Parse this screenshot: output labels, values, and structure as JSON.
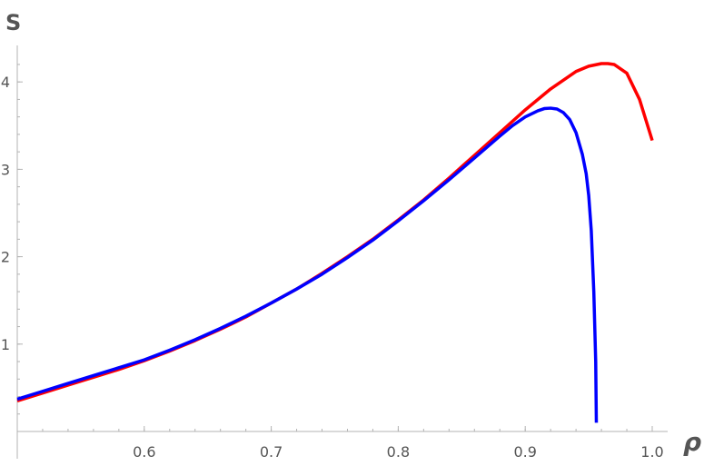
{
  "chart_data": {
    "type": "line",
    "xlabel": "ρ",
    "ylabel": "S",
    "xlim": [
      0.5,
      1.0
    ],
    "ylim": [
      0,
      4.3
    ],
    "xticks": [
      0.6,
      0.7,
      0.8,
      0.9,
      1.0
    ],
    "xtick_labels": [
      "0.6",
      "0.7",
      "0.8",
      "0.9",
      "1.0"
    ],
    "yticks": [
      1,
      2,
      3,
      4
    ],
    "ytick_labels": [
      "1",
      "2",
      "3",
      "4"
    ],
    "grid": false,
    "legend": "none",
    "series": [
      {
        "color": "#ff0000",
        "points": [
          [
            0.5,
            0.35
          ],
          [
            0.52,
            0.44
          ],
          [
            0.54,
            0.53
          ],
          [
            0.56,
            0.62
          ],
          [
            0.58,
            0.71
          ],
          [
            0.6,
            0.81
          ],
          [
            0.62,
            0.92
          ],
          [
            0.64,
            1.04
          ],
          [
            0.66,
            1.17
          ],
          [
            0.68,
            1.31
          ],
          [
            0.7,
            1.47
          ],
          [
            0.72,
            1.63
          ],
          [
            0.74,
            1.81
          ],
          [
            0.76,
            2.0
          ],
          [
            0.78,
            2.2
          ],
          [
            0.8,
            2.42
          ],
          [
            0.82,
            2.65
          ],
          [
            0.84,
            2.9
          ],
          [
            0.86,
            3.16
          ],
          [
            0.88,
            3.42
          ],
          [
            0.9,
            3.68
          ],
          [
            0.92,
            3.92
          ],
          [
            0.94,
            4.12
          ],
          [
            0.95,
            4.18
          ],
          [
            0.96,
            4.21
          ],
          [
            0.965,
            4.21
          ],
          [
            0.97,
            4.2
          ],
          [
            0.98,
            4.1
          ],
          [
            0.99,
            3.8
          ],
          [
            1.0,
            3.33
          ]
        ]
      },
      {
        "color": "#0000ff",
        "points": [
          [
            0.5,
            0.37
          ],
          [
            0.52,
            0.46
          ],
          [
            0.54,
            0.55
          ],
          [
            0.56,
            0.64
          ],
          [
            0.58,
            0.73
          ],
          [
            0.6,
            0.82
          ],
          [
            0.62,
            0.93
          ],
          [
            0.64,
            1.05
          ],
          [
            0.66,
            1.18
          ],
          [
            0.68,
            1.32
          ],
          [
            0.7,
            1.47
          ],
          [
            0.72,
            1.63
          ],
          [
            0.74,
            1.8
          ],
          [
            0.76,
            1.99
          ],
          [
            0.78,
            2.19
          ],
          [
            0.8,
            2.41
          ],
          [
            0.82,
            2.64
          ],
          [
            0.84,
            2.88
          ],
          [
            0.86,
            3.13
          ],
          [
            0.88,
            3.38
          ],
          [
            0.89,
            3.5
          ],
          [
            0.9,
            3.6
          ],
          [
            0.91,
            3.67
          ],
          [
            0.915,
            3.695
          ],
          [
            0.92,
            3.7
          ],
          [
            0.925,
            3.69
          ],
          [
            0.93,
            3.65
          ],
          [
            0.935,
            3.57
          ],
          [
            0.94,
            3.42
          ],
          [
            0.945,
            3.17
          ],
          [
            0.948,
            2.95
          ],
          [
            0.95,
            2.7
          ],
          [
            0.952,
            2.3
          ],
          [
            0.954,
            1.6
          ],
          [
            0.9555,
            0.8
          ],
          [
            0.956,
            0.1
          ]
        ]
      }
    ]
  }
}
